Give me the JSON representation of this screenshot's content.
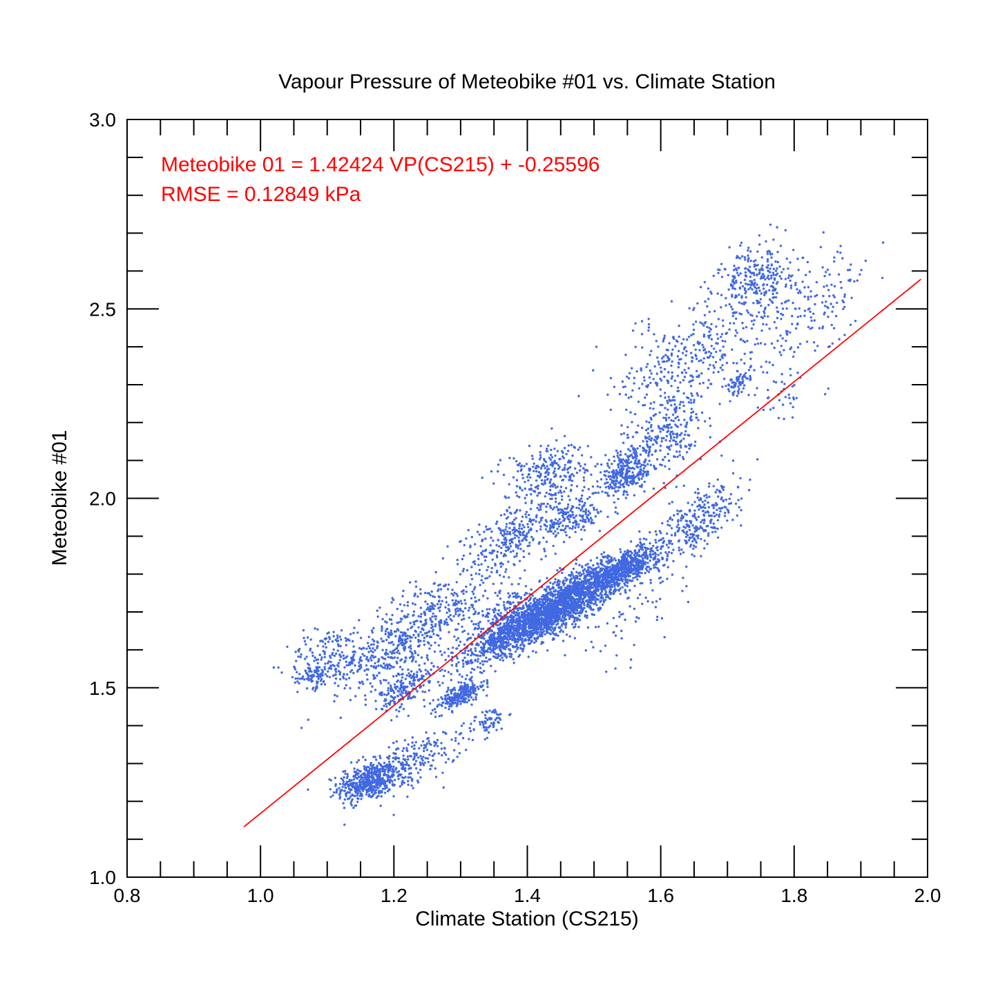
{
  "chart_data": {
    "type": "scatter",
    "title": "Vapour Pressure of Meteobike #01 vs. Climate Station",
    "xlabel": "Climate Station (CS215)",
    "ylabel": "Meteobike #01",
    "xlim": [
      0.8,
      2.0
    ],
    "ylim": [
      1.0,
      3.0
    ],
    "x_ticks": [
      "0.8",
      "1.0",
      "1.2",
      "1.4",
      "1.6",
      "1.8",
      "2.0"
    ],
    "y_ticks": [
      "1.0",
      "1.5",
      "2.0",
      "2.5",
      "3.0"
    ],
    "grid": false,
    "point_color": "#4169e1",
    "fit_color": "#ff0000",
    "fit_line": {
      "slope": 1.42424,
      "intercept": -0.25596,
      "x_range": [
        0.975,
        1.99
      ]
    },
    "annotations": [
      "Meteobike 01 = 1.42424 VP(CS215) + -0.25596",
      "RMSE = 0.12849 kPa"
    ],
    "series": [
      {
        "clusters": [
          {
            "x": 1.16,
            "y": 1.25,
            "sx": 0.022,
            "sy": 0.025,
            "r": 0.3,
            "n": 450
          },
          {
            "x": 1.22,
            "y": 1.3,
            "sx": 0.04,
            "sy": 0.04,
            "r": 0.6,
            "n": 260
          },
          {
            "x": 1.3,
            "y": 1.48,
            "sx": 0.018,
            "sy": 0.02,
            "r": 0.7,
            "n": 220
          },
          {
            "x": 1.34,
            "y": 1.41,
            "sx": 0.015,
            "sy": 0.02,
            "r": 0.5,
            "n": 70
          },
          {
            "x": 1.1,
            "y": 1.58,
            "sx": 0.03,
            "sy": 0.04,
            "r": 0.2,
            "n": 160
          },
          {
            "x": 1.08,
            "y": 1.53,
            "sx": 0.012,
            "sy": 0.015,
            "r": 0.2,
            "n": 60
          },
          {
            "x": 1.19,
            "y": 1.6,
            "sx": 0.04,
            "sy": 0.06,
            "r": 0.5,
            "n": 340
          },
          {
            "x": 1.27,
            "y": 1.7,
            "sx": 0.04,
            "sy": 0.06,
            "r": 0.6,
            "n": 280
          },
          {
            "x": 1.22,
            "y": 1.5,
            "sx": 0.02,
            "sy": 0.03,
            "r": 0.5,
            "n": 180
          },
          {
            "x": 1.42,
            "y": 1.68,
            "sx": 0.05,
            "sy": 0.05,
            "r": 0.85,
            "n": 1500
          },
          {
            "x": 1.48,
            "y": 1.76,
            "sx": 0.045,
            "sy": 0.045,
            "r": 0.8,
            "n": 900
          },
          {
            "x": 1.55,
            "y": 1.82,
            "sx": 0.025,
            "sy": 0.03,
            "r": 0.6,
            "n": 500
          },
          {
            "x": 1.36,
            "y": 1.66,
            "sx": 0.03,
            "sy": 0.06,
            "r": 0.7,
            "n": 350
          },
          {
            "x": 1.43,
            "y": 2.07,
            "sx": 0.035,
            "sy": 0.04,
            "r": 0.3,
            "n": 250
          },
          {
            "x": 1.38,
            "y": 1.9,
            "sx": 0.04,
            "sy": 0.05,
            "r": 0.6,
            "n": 300
          },
          {
            "x": 1.47,
            "y": 1.95,
            "sx": 0.02,
            "sy": 0.03,
            "r": 0.3,
            "n": 160
          },
          {
            "x": 1.55,
            "y": 2.07,
            "sx": 0.02,
            "sy": 0.04,
            "r": 0.5,
            "n": 300
          },
          {
            "x": 1.61,
            "y": 2.18,
            "sx": 0.03,
            "sy": 0.06,
            "r": 0.5,
            "n": 260
          },
          {
            "x": 1.66,
            "y": 1.94,
            "sx": 0.03,
            "sy": 0.05,
            "r": 0.6,
            "n": 280
          },
          {
            "x": 1.64,
            "y": 2.38,
            "sx": 0.05,
            "sy": 0.07,
            "r": 0.5,
            "n": 300
          },
          {
            "x": 1.74,
            "y": 2.58,
            "sx": 0.03,
            "sy": 0.05,
            "r": 0.3,
            "n": 260
          },
          {
            "x": 1.72,
            "y": 2.31,
            "sx": 0.01,
            "sy": 0.02,
            "r": 0.5,
            "n": 60
          },
          {
            "x": 1.8,
            "y": 2.48,
            "sx": 0.05,
            "sy": 0.09,
            "r": 0.5,
            "n": 160
          },
          {
            "x": 1.86,
            "y": 2.55,
            "sx": 0.03,
            "sy": 0.06,
            "r": 0.6,
            "n": 50
          },
          {
            "x": 1.79,
            "y": 2.26,
            "sx": 0.02,
            "sy": 0.03,
            "r": 0.3,
            "n": 30
          },
          {
            "x": 1.55,
            "y": 1.7,
            "sx": 0.05,
            "sy": 0.08,
            "r": 0.5,
            "n": 80
          }
        ]
      }
    ]
  }
}
